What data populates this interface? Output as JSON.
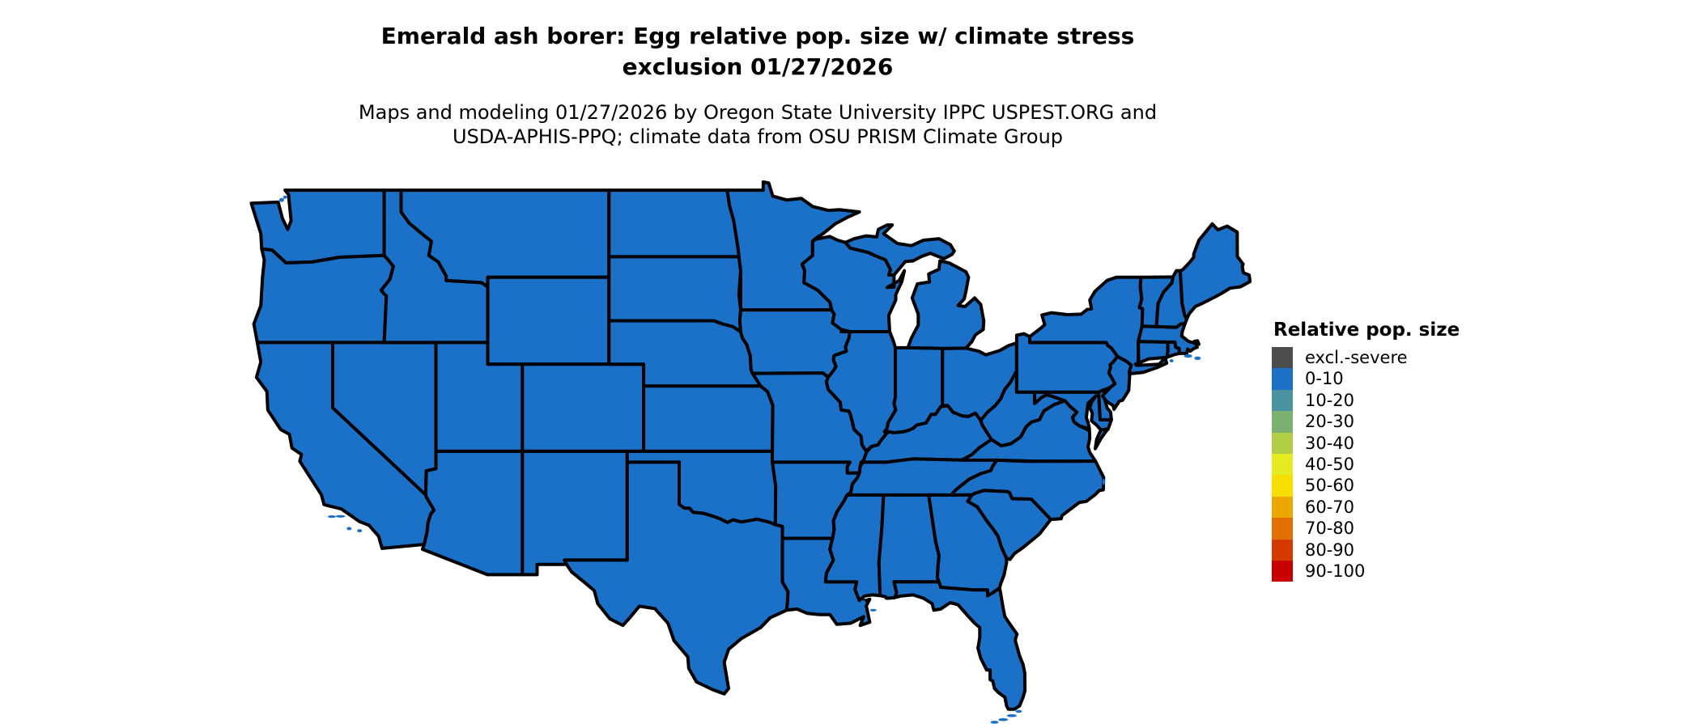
{
  "figure": {
    "title_line1": "Emerald ash borer: Egg relative pop. size w/ climate stress",
    "title_line2": "exclusion 01/27/2026",
    "subtitle_line1": "Maps and modeling 01/27/2026 by Oregon State University IPPC USPEST.ORG and",
    "subtitle_line2": "USDA-APHIS-PPQ; climate data from OSU PRISM Climate Group"
  },
  "legend": {
    "title": "Relative pop. size",
    "items": [
      {
        "label": "excl.-severe",
        "color": "#4D4D4D"
      },
      {
        "label": "0-10",
        "color": "#1B71C8"
      },
      {
        "label": "10-20",
        "color": "#4B93A0"
      },
      {
        "label": "20-30",
        "color": "#7CB06F"
      },
      {
        "label": "30-40",
        "color": "#B3CE44"
      },
      {
        "label": "40-50",
        "color": "#E6EC22"
      },
      {
        "label": "50-60",
        "color": "#F6DE00"
      },
      {
        "label": "60-70",
        "color": "#EDA800"
      },
      {
        "label": "70-80",
        "color": "#E17000"
      },
      {
        "label": "80-90",
        "color": "#D43900"
      },
      {
        "label": "90-100",
        "color": "#C90000"
      }
    ]
  },
  "map": {
    "region": "Contiguous United States",
    "fill_color": "#1B71C8",
    "border_color": "#000000",
    "background_color": "#FFFFFF"
  },
  "chart_data": {
    "type": "choropleth-map",
    "title": "Emerald ash borer: Egg relative pop. size w/ climate stress exclusion 01/27/2026",
    "legend_title": "Relative pop. size",
    "classes": [
      "excl.-severe",
      "0-10",
      "10-20",
      "20-30",
      "30-40",
      "40-50",
      "50-60",
      "60-70",
      "70-80",
      "80-90",
      "90-100"
    ],
    "class_colors": [
      "#4D4D4D",
      "#1B71C8",
      "#4B93A0",
      "#7CB06F",
      "#B3CE44",
      "#E6EC22",
      "#F6DE00",
      "#EDA800",
      "#E17000",
      "#D43900",
      "#C90000"
    ],
    "observation": "All visible states of the contiguous US are shaded in the 0-10 class"
  }
}
